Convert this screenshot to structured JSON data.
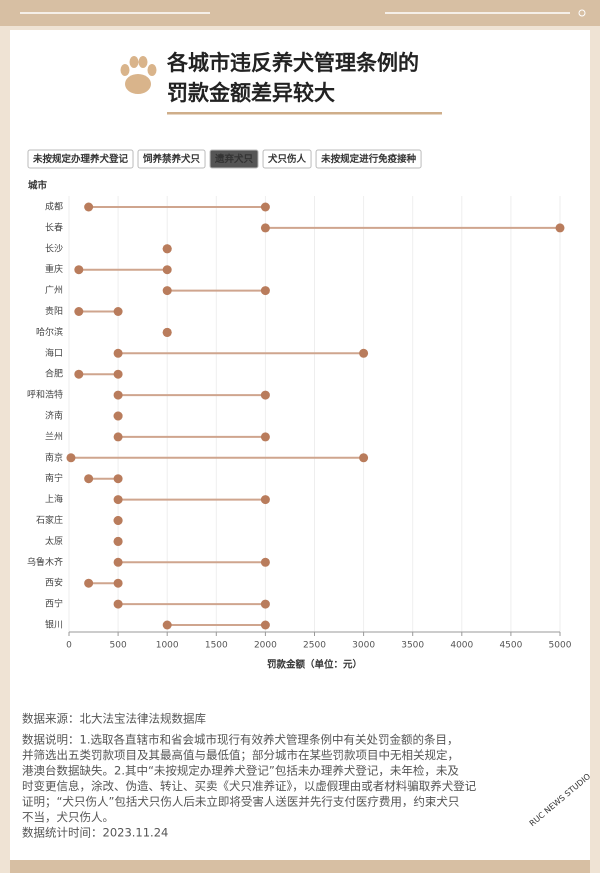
{
  "header": {
    "title_lines": [
      "各城市违反养犬管理条例的",
      "罚款金额差异较大"
    ]
  },
  "tabs": {
    "items": [
      "未按规定办理养犬登记",
      "饲养禁养犬只",
      "遗弃犬只",
      "犬只伤人",
      "未按规定进行免疫接种"
    ],
    "active": 2
  },
  "chart_data": {
    "type": "dumbbell",
    "y_label": "城市",
    "x_label": "罚款金额（单位：元）",
    "categories": [
      "成都",
      "长春",
      "长沙",
      "重庆",
      "广州",
      "贵阳",
      "哈尔滨",
      "海口",
      "合肥",
      "呼和浩特",
      "济南",
      "兰州",
      "南京",
      "南宁",
      "上海",
      "石家庄",
      "太原",
      "乌鲁木齐",
      "西安",
      "西宁",
      "银川"
    ],
    "series": [
      {
        "color": "#b97c5c",
        "values": [
          200,
          2000,
          1000,
          100,
          1000,
          100,
          1000,
          500,
          100,
          500,
          500,
          500,
          20,
          200,
          500,
          500,
          500,
          500,
          200,
          500,
          1000
        ]
      },
      {
        "color": "#b97c5c",
        "values": [
          2000,
          5000,
          1000,
          1000,
          2000,
          500,
          1000,
          3000,
          500,
          2000,
          500,
          2000,
          3000,
          500,
          2000,
          500,
          500,
          2000,
          500,
          2000,
          2000
        ]
      }
    ],
    "line_color": "#cfa58e",
    "xlim": [
      0,
      5000
    ],
    "xticks": [
      0,
      500,
      1000,
      1500,
      2000,
      2500,
      3000,
      3500,
      4000,
      4500,
      5000
    ],
    "grid": true
  },
  "footer": {
    "source": "数据来源：北大法宝法律法规数据库",
    "note_lines": [
      "数据说明：1.选取各直辖市和省会城市现行有效养犬管理条例中有关处罚金额的条目，",
      "并筛选出五类罚款项目及其最高值与最低值；部分城市在某些罚款项目中无相关规定，",
      "港澳台数据缺失。2.其中“未按规定办理养犬登记”包括未办理养犬登记，未年检，未及",
      "时变更信息，涂改、伪造、转让、买卖《犬只准养证》，以虚假理由或者材料骗取养犬登记",
      "证明；“犬只伤人”包括犬只伤人后未立即将受害人送医并先行支付医疗费用，约束犬只",
      "不当，犬只伤人。"
    ],
    "date": "数据统计时间：2023.11.24",
    "watermark": "RUC NEWS STUDIO"
  }
}
